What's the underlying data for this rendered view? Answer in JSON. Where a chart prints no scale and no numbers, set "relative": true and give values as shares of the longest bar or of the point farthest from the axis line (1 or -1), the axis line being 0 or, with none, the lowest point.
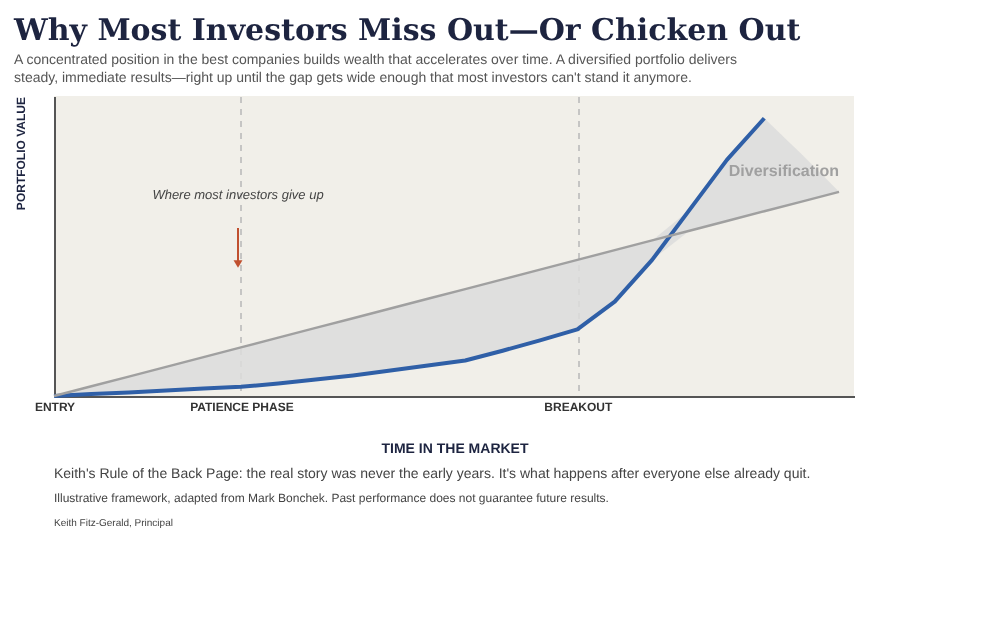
{
  "chart_data": {
    "type": "line",
    "title": "Why Most Investors Miss Out—Or Chicken Out",
    "subtitle": "A concentrated position in the best companies builds wealth that accelerates over time. A diversified portfolio delivers steady, immediate results—right up until the gap gets wide enough that most investors can't stand it anymore.",
    "xlabel": "TIME IN THE MARKET",
    "ylabel": "PORTFOLIO VALUE",
    "relative": true,
    "categories": [
      "ENTRY",
      null,
      null,
      null,
      null,
      "PATIENCE PHASE",
      null,
      null,
      null,
      null,
      null,
      null,
      null,
      null,
      "BREAKOUT",
      null,
      null,
      null,
      null,
      null,
      null,
      null
    ],
    "tick_labels": "x",
    "grid": "x",
    "legend": false,
    "marker": "none",
    "line_style": "solid",
    "series": [
      {
        "color": "#2f5fa7",
        "values": [
          0,
          0.007,
          0.013,
          0.02,
          0.027,
          0.033,
          0.045,
          0.059,
          0.074,
          0.092,
          0.11,
          0.128,
          0.163,
          0.2,
          0.24,
          0.34,
          0.49,
          0.67,
          0.85,
          1.0,
          null,
          null
        ],
        "lower": [
          0,
          0.007,
          0.013,
          0.02,
          0.027,
          0.033,
          0.045,
          0.059,
          0.074,
          0.092,
          0.11,
          0.128,
          0.163,
          0.2,
          0.24,
          0.34,
          0.49,
          0.595,
          0.63,
          0.665,
          0.7,
          0.735
        ],
        "upper": [
          0,
          0.035,
          0.07,
          0.105,
          0.14,
          0.175,
          0.21,
          0.245,
          0.28,
          0.315,
          0.35,
          0.385,
          0.42,
          0.455,
          0.49,
          0.525,
          0.56,
          0.67,
          0.85,
          1.0,
          0.87,
          0.735
        ]
      },
      {
        "name": "Diversification",
        "color": "#a0a0a0",
        "values": [
          0,
          0.035,
          0.07,
          0.105,
          0.14,
          0.175,
          0.21,
          0.245,
          0.28,
          0.315,
          0.35,
          0.385,
          0.42,
          0.455,
          0.49,
          0.525,
          0.56,
          0.595,
          0.63,
          0.665,
          0.7,
          0.735
        ]
      }
    ],
    "annotations": [
      "Where most investors give up",
      "Keith's Rule of the Back Page: the real story was never the early years. It's what happens after everyone else already quit.",
      "Illustrative framework, adapted from Mark Bonchek. Past performance does not guarantee future results.",
      "Keith Fitz-Gerald, Principal"
    ]
  }
}
